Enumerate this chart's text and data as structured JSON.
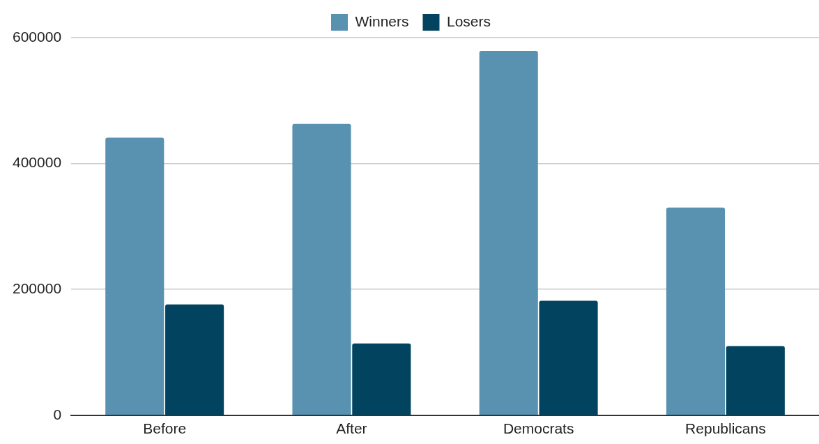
{
  "chart_data": {
    "type": "bar",
    "categories": [
      "Before",
      "After",
      "Democrats",
      "Republicans"
    ],
    "series": [
      {
        "name": "Winners",
        "color": "#5991b0",
        "values": [
          441000,
          463000,
          579000,
          330000
        ]
      },
      {
        "name": "Losers",
        "color": "#02445f",
        "values": [
          176000,
          114000,
          182000,
          110000
        ]
      }
    ],
    "ylim": [
      0,
      600000
    ],
    "yticks": [
      0,
      200000,
      400000,
      600000
    ],
    "grid": "y",
    "legend": "top"
  }
}
